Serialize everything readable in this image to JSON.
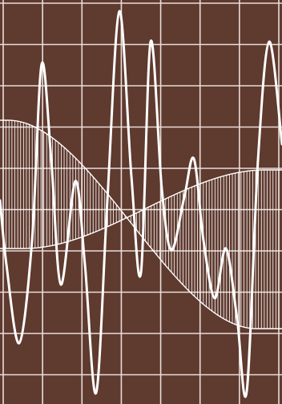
{
  "colors": {
    "background": "#5f3a2f",
    "grid": "#e9ddd8",
    "line": "#ffffff"
  },
  "grid": {
    "columns": 7,
    "rows": 10
  },
  "hatch": {
    "line_count": 96
  }
}
